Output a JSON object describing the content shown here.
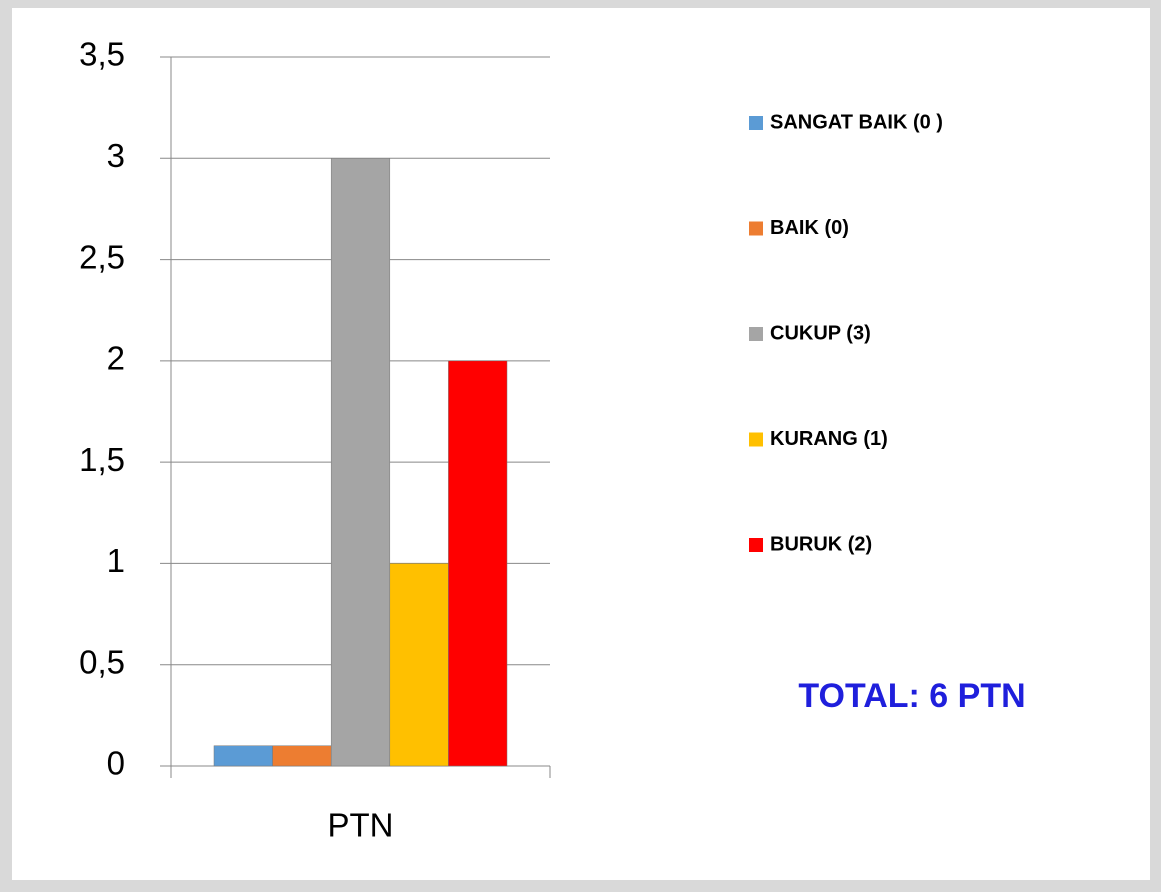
{
  "chart_data": {
    "type": "bar",
    "categories": [
      "PTN"
    ],
    "series": [
      {
        "name": "SANGAT BAIK (0 )",
        "color": "#5b9bd5",
        "values": [
          0.1
        ]
      },
      {
        "name": "BAIK (0)",
        "color": "#ed7d31",
        "values": [
          0.1
        ]
      },
      {
        "name": "CUKUP (3)",
        "color": "#a5a5a5",
        "values": [
          3
        ]
      },
      {
        "name": "KURANG (1)",
        "color": "#ffc000",
        "values": [
          1
        ]
      },
      {
        "name": "BURUK (2)",
        "color": "#ff0000",
        "values": [
          2
        ]
      }
    ],
    "ylim": [
      0,
      3.5
    ],
    "yticks": [
      0,
      {
        "value": 0.5,
        "label": "0,5"
      },
      1,
      {
        "value": 1.5,
        "label": "1,5"
      },
      2,
      {
        "value": 2.5,
        "label": "2,5"
      },
      3,
      {
        "value": 3.5,
        "label": "3,5"
      }
    ],
    "grid": true,
    "legend": "right",
    "annotation": "TOTAL:  6 PTN"
  }
}
